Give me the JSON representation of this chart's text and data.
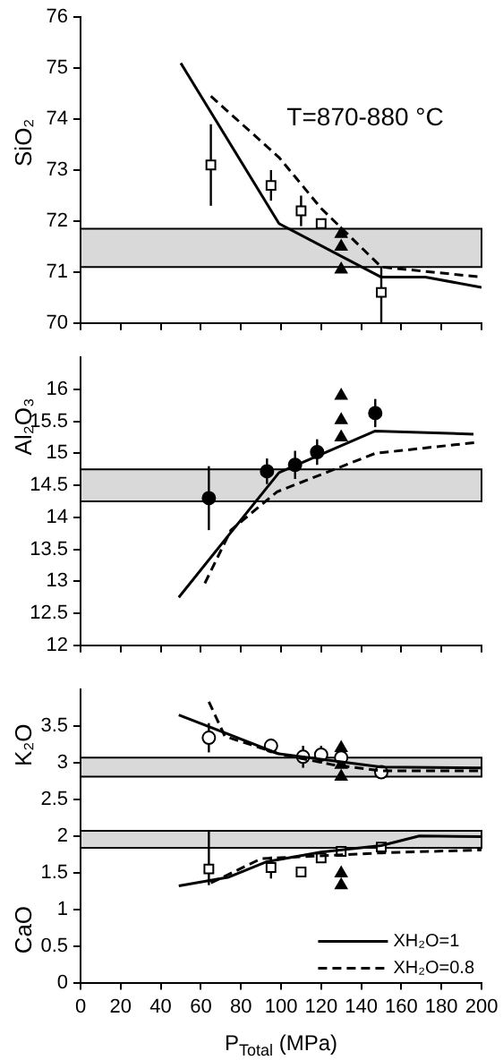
{
  "chart_data": [
    {
      "type": "line",
      "ylabel": "SiO₂",
      "annotations": [
        "T=870-880 °C"
      ],
      "xlim": [
        0,
        200
      ],
      "xticks": [
        0,
        20,
        40,
        60,
        80,
        100,
        120,
        140,
        160,
        180,
        200
      ],
      "ylim": [
        70,
        76
      ],
      "yticks": [
        70,
        71,
        72,
        73,
        74,
        75,
        76
      ],
      "tick_labels": "y",
      "grid": false,
      "bands": [
        {
          "axis": "y",
          "from": 71.1,
          "to": 71.85,
          "color": "#d9d9d9"
        }
      ],
      "series": [
        {
          "type": "line",
          "color": "#000000",
          "line_style": "solid",
          "marker": "none",
          "x": [
            50,
            99,
            150,
            172,
            200
          ],
          "values": [
            75.1,
            71.95,
            70.9,
            70.9,
            70.7
          ]
        },
        {
          "type": "line",
          "color": "#000000",
          "line_style": "dashed",
          "marker": "none",
          "x": [
            65,
            99,
            120,
            150,
            200
          ],
          "values": [
            74.45,
            73.25,
            72.25,
            71.1,
            70.9
          ]
        },
        {
          "type": "scatter",
          "color": "#ffffff",
          "marker": "square",
          "x": [
            65,
            95,
            110,
            120,
            150
          ],
          "values": [
            73.1,
            72.7,
            72.2,
            71.95,
            70.6
          ],
          "errors": [
            0.8,
            0.3,
            0.3,
            null,
            [
              70.0,
              71.1
            ]
          ]
        },
        {
          "type": "scatter",
          "color": "#000000",
          "marker": "triangle",
          "x": [
            130,
            130,
            130
          ],
          "values": [
            71.05,
            71.5,
            71.75
          ]
        }
      ]
    },
    {
      "type": "line",
      "ylabel": "Al₂O₃",
      "xlim": [
        0,
        200
      ],
      "xticks": [
        0,
        20,
        40,
        60,
        80,
        100,
        120,
        140,
        160,
        180,
        200
      ],
      "ylim": [
        12,
        16.5
      ],
      "yticks": [
        12,
        12.5,
        13,
        13.5,
        14,
        14.5,
        15,
        15.5,
        16
      ],
      "tick_labels": "y",
      "grid": false,
      "bands": [
        {
          "axis": "y",
          "from": 14.25,
          "to": 14.75,
          "color": "#d9d9d9"
        }
      ],
      "series": [
        {
          "type": "line",
          "color": "#000000",
          "line_style": "solid",
          "marker": "none",
          "x": [
            49,
            99,
            147,
            196
          ],
          "values": [
            12.75,
            14.7,
            15.35,
            15.3
          ]
        },
        {
          "type": "line",
          "color": "#000000",
          "line_style": "dashed",
          "marker": "none",
          "x": [
            62,
            75,
            98,
            147,
            197
          ],
          "values": [
            12.97,
            13.8,
            14.4,
            15.0,
            15.17
          ]
        },
        {
          "type": "scatter",
          "color": "#000000",
          "marker": "circle",
          "x": [
            64,
            93,
            107,
            118,
            147
          ],
          "values": [
            14.3,
            14.72,
            14.82,
            15.02,
            15.63
          ],
          "errors": [
            0.5,
            0.2,
            0.22,
            0.2,
            0.22
          ]
        },
        {
          "type": "scatter",
          "color": "#000000",
          "marker": "triangle",
          "x": [
            130,
            130,
            130
          ],
          "values": [
            15.25,
            15.52,
            15.9
          ]
        }
      ]
    },
    {
      "type": "line",
      "ylabel": "K₂O",
      "annotations": [
        "CaO"
      ],
      "xlabel": "P$_{Total}$ (MPa)",
      "xlim": [
        0,
        200
      ],
      "xticks": [
        0,
        20,
        40,
        60,
        80,
        100,
        120,
        140,
        160,
        180,
        200
      ],
      "ylim": [
        0,
        4
      ],
      "yticks": [
        0,
        0.5,
        1,
        1.5,
        2,
        2.5,
        3,
        3.5
      ],
      "grid": false,
      "legend": "bottom right",
      "bands": [
        {
          "axis": "y",
          "from": 2.81,
          "to": 3.07,
          "color": "#d9d9d9"
        },
        {
          "axis": "y",
          "from": 1.84,
          "to": 2.07,
          "color": "#d9d9d9"
        }
      ],
      "series": [
        {
          "type": "line",
          "name": "XH₂O=1",
          "color": "#000000",
          "line_style": "solid",
          "marker": "none",
          "x": [
            49,
            99,
            150,
            200
          ],
          "values": [
            3.65,
            3.12,
            2.94,
            2.93
          ]
        },
        {
          "type": "line",
          "name": "XH₂O=0.8",
          "color": "#000000",
          "line_style": "dashed",
          "marker": "none",
          "x": [
            64,
            72,
            99,
            126,
            150,
            200
          ],
          "values": [
            3.83,
            3.36,
            3.12,
            2.97,
            2.89,
            2.89
          ]
        },
        {
          "type": "line",
          "color": "#000000",
          "line_style": "solid",
          "marker": "none",
          "x": [
            49,
            74,
            93,
            120,
            150,
            169,
            200
          ],
          "values": [
            1.32,
            1.44,
            1.65,
            1.78,
            1.87,
            2.0,
            1.99
          ]
        },
        {
          "type": "line",
          "color": "#000000",
          "line_style": "dashed",
          "marker": "none",
          "x": [
            65,
            90,
            150,
            200
          ],
          "values": [
            1.36,
            1.69,
            1.77,
            1.81
          ]
        },
        {
          "type": "scatter",
          "color": "#ffffff",
          "marker": "circle",
          "x": [
            64,
            95,
            111,
            120,
            130,
            150
          ],
          "values": [
            3.34,
            3.23,
            3.08,
            3.11,
            3.07,
            2.87
          ],
          "errors": [
            0.2,
            0.1,
            0.15,
            0.12,
            null,
            null
          ]
        },
        {
          "type": "scatter",
          "color": "#000000",
          "marker": "triangle",
          "x": [
            130,
            130,
            130
          ],
          "values": [
            2.81,
            2.97,
            3.2
          ]
        },
        {
          "type": "scatter",
          "color": "#ffffff",
          "marker": "square",
          "x": [
            64,
            95,
            110,
            120,
            130,
            150
          ],
          "values": [
            1.55,
            1.57,
            1.51,
            1.7,
            1.79,
            1.85
          ],
          "errors": [
            [
              1.33,
              2.06
            ],
            0.15,
            null,
            null,
            null,
            null
          ]
        },
        {
          "type": "scatter",
          "color": "#000000",
          "marker": "triangle",
          "x": [
            130,
            130
          ],
          "values": [
            1.33,
            1.49
          ]
        }
      ]
    }
  ]
}
